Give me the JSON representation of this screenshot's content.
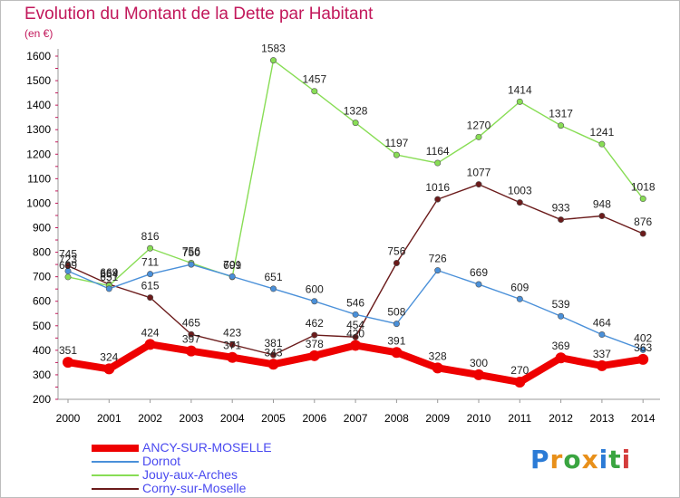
{
  "title": "Evolution du Montant de la Dette par Habitant",
  "unit": "(en €)",
  "logo": "Proxiti",
  "chart_data": {
    "type": "line",
    "title": "Evolution du Montant de la Dette par Habitant",
    "subtitle": "(en €)",
    "x": [
      "2000",
      "2001",
      "2002",
      "2003",
      "2004",
      "2005",
      "2006",
      "2007",
      "2008",
      "2009",
      "2010",
      "2011",
      "2012",
      "2013",
      "2014"
    ],
    "ylim": [
      200,
      1600
    ],
    "yticks": [
      200,
      300,
      400,
      500,
      600,
      700,
      800,
      900,
      1000,
      1100,
      1200,
      1300,
      1400,
      1500,
      1600
    ],
    "grid": false,
    "legend": "bottom-left",
    "series": [
      {
        "name": "Corny-sur-Moselle",
        "color": "#6b1b1b",
        "values": [
          745,
          669,
          615,
          465,
          423,
          381,
          462,
          454,
          756,
          1016,
          1077,
          1003,
          933,
          948,
          876
        ]
      },
      {
        "name": "Jouy-aux-Arches",
        "color": "#88dd55",
        "values": [
          699,
          664,
          816,
          756,
          699,
          1583,
          1457,
          1328,
          1197,
          1164,
          1270,
          1414,
          1317,
          1241,
          1018
        ]
      },
      {
        "name": "Dornot",
        "color": "#4a90d9",
        "values": [
          723,
          651,
          711,
          750,
          701,
          651,
          600,
          546,
          508,
          726,
          669,
          609,
          539,
          464,
          402
        ]
      },
      {
        "name": "ANCY-SUR-MOSELLE",
        "color": "#ee0000",
        "values": [
          351,
          324,
          424,
          397,
          371,
          343,
          378,
          420,
          391,
          328,
          300,
          270,
          369,
          337,
          363
        ]
      }
    ]
  }
}
